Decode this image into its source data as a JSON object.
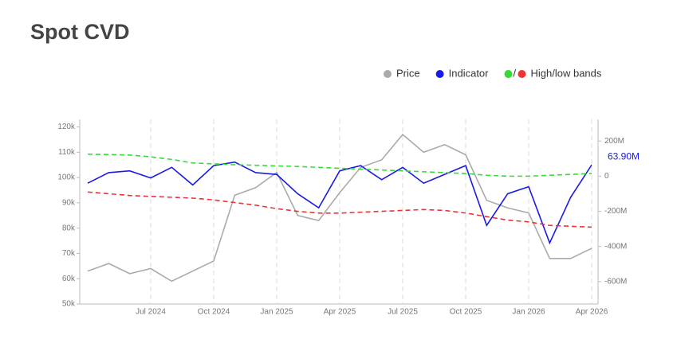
{
  "chart_data": {
    "type": "line",
    "title": "Spot CVD",
    "x": [
      "2024-04",
      "2024-05",
      "2024-06",
      "2024-07",
      "2024-08",
      "2024-09",
      "2024-10",
      "2024-11",
      "2024-12",
      "2025-01",
      "2025-02",
      "2025-03",
      "2025-04",
      "2025-05",
      "2025-06",
      "2025-07",
      "2025-08",
      "2025-09",
      "2025-10",
      "2025-11",
      "2025-12",
      "2026-01",
      "2026-02",
      "2026-03",
      "2026-04"
    ],
    "xlim": [
      "2024-04",
      "2026-04"
    ],
    "xticks": [
      {
        "value": "2024-07",
        "label": "Jul 2024"
      },
      {
        "value": "2024-10",
        "label": "Oct 2024"
      },
      {
        "value": "2025-01",
        "label": "Jan 2025"
      },
      {
        "value": "2025-04",
        "label": "Apr 2025"
      },
      {
        "value": "2025-07",
        "label": "Jul 2025"
      },
      {
        "value": "2025-10",
        "label": "Oct 2025"
      },
      {
        "value": "2026-01",
        "label": "Jan 2026"
      },
      {
        "value": "2026-04",
        "label": "Apr 2026"
      }
    ],
    "ylim": [
      50000,
      123000
    ],
    "yticks": [
      {
        "value": 50000,
        "label": "50k"
      },
      {
        "value": 60000,
        "label": "60k"
      },
      {
        "value": 70000,
        "label": "70k"
      },
      {
        "value": 80000,
        "label": "80k"
      },
      {
        "value": 90000,
        "label": "90k"
      },
      {
        "value": 100000,
        "label": "100k"
      },
      {
        "value": 110000,
        "label": "110k"
      },
      {
        "value": 120000,
        "label": "120k"
      }
    ],
    "y2lim": [
      -727,
      323
    ],
    "y2ticks": [
      {
        "value": -600,
        "label": "-600M"
      },
      {
        "value": -400,
        "label": "-400M"
      },
      {
        "value": -200,
        "label": "-200M"
      },
      0,
      {
        "value": 200,
        "label": "200M"
      }
    ],
    "vertical_grid": true,
    "series": [
      {
        "name": "Price",
        "color": "#aaaaaa",
        "axis": "y",
        "values": [
          63000,
          66000,
          62000,
          64000,
          59000,
          63000,
          67000,
          93000,
          96000,
          102000,
          85000,
          83000,
          94000,
          104000,
          107000,
          117000,
          110000,
          113000,
          109000,
          91000,
          88000,
          86000,
          68000,
          68000,
          72000
        ]
      },
      {
        "name": "Indicator",
        "color": "#1a1ae6",
        "axis": "y2",
        "values": [
          -40,
          20,
          30,
          -10,
          50,
          -50,
          60,
          80,
          20,
          10,
          -100,
          -180,
          30,
          60,
          -20,
          50,
          -40,
          10,
          60,
          -280,
          -100,
          -60,
          -380,
          -120,
          63.9
        ]
      }
    ],
    "bands": {
      "name": "High/low bands",
      "colors": [
        "#33dd33",
        "#ee3333"
      ],
      "axis": "y2",
      "dashed": true,
      "upper": [
        125,
        123,
        120,
        110,
        95,
        75,
        70,
        65,
        62,
        58,
        55,
        50,
        45,
        40,
        35,
        30,
        25,
        20,
        15,
        5,
        0,
        0,
        5,
        10,
        15
      ],
      "lower": [
        -90,
        -100,
        -110,
        -115,
        -120,
        -125,
        -135,
        -150,
        -165,
        -185,
        -200,
        -210,
        -210,
        -205,
        -200,
        -195,
        -190,
        -195,
        -210,
        -230,
        -250,
        -260,
        -280,
        -285,
        -290
      ]
    },
    "annotation": {
      "label": "63.90M",
      "value": 63.9
    }
  }
}
